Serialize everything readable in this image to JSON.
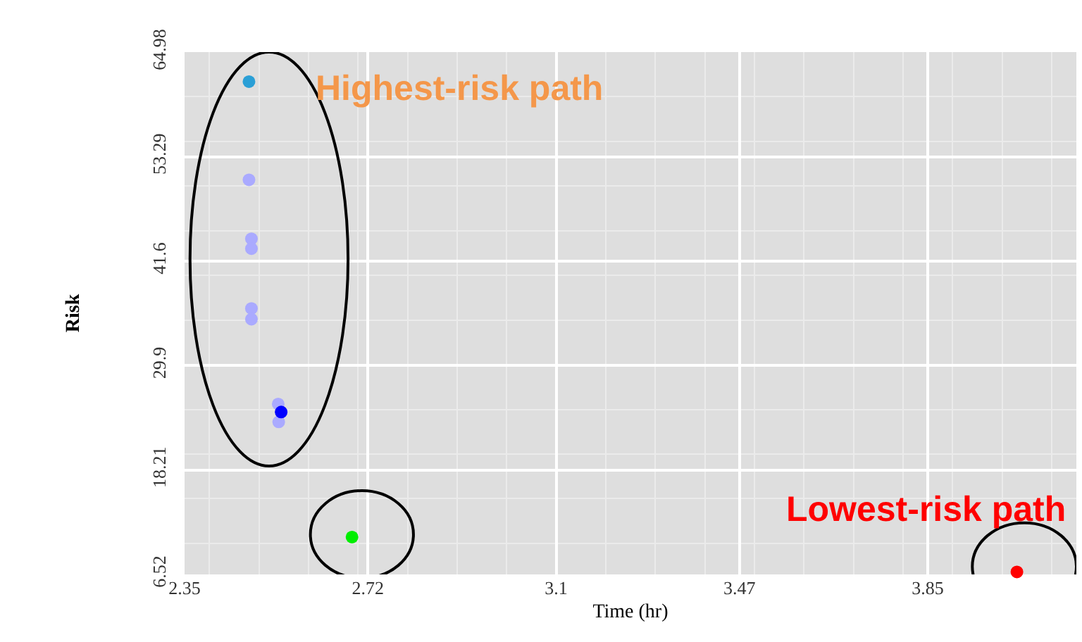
{
  "chart_data": {
    "type": "scatter",
    "xlabel": "Time (hr)",
    "ylabel": "Risk",
    "x": [
      2.48,
      2.48,
      2.485,
      2.485,
      2.485,
      2.485,
      2.539,
      2.54,
      2.545,
      2.688,
      4.03
    ],
    "values": [
      61.7,
      50.7,
      44.1,
      43.0,
      36.3,
      35.1,
      25.6,
      23.6,
      24.7,
      10.7,
      6.8
    ],
    "colors": [
      "#2a9fd6",
      "#aaaaff",
      "#aaaaff",
      "#aaaaff",
      "#aaaaff",
      "#aaaaff",
      "#aaaaff",
      "#aaaaff",
      "#0000ff",
      "#00ee00",
      "#ff0000"
    ],
    "xlim": [
      2.35,
      4.15
    ],
    "xticks": [
      2.35,
      2.72,
      3.1,
      3.47,
      3.85
    ],
    "ylim": [
      6.52,
      65.0
    ],
    "yticks": [
      6.52,
      18.21,
      29.9,
      41.6,
      53.29,
      64.98
    ],
    "grid": true,
    "marker": "circle",
    "annotations": [
      "Highest-risk path",
      "Lowest-risk path"
    ]
  }
}
